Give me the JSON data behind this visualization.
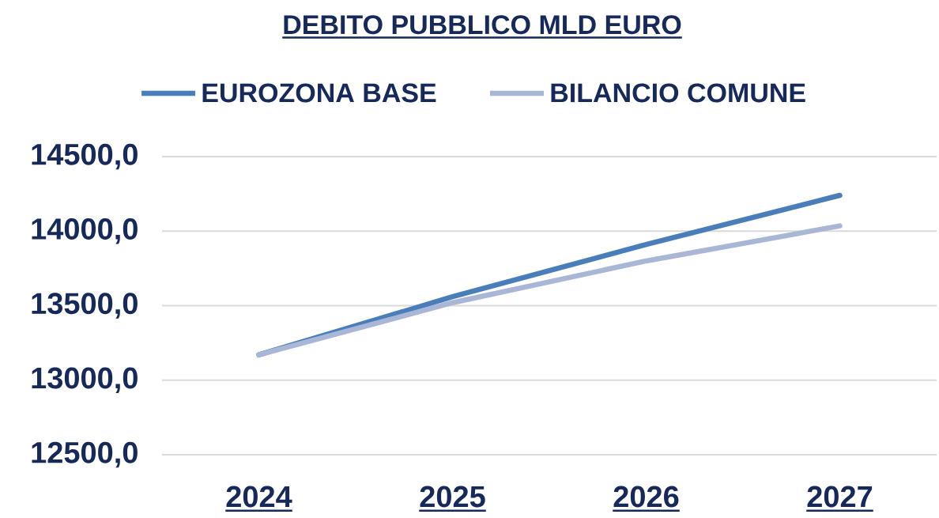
{
  "chart_data": {
    "type": "line",
    "title": "DEBITO PUBBLICO MLD EURO",
    "categories": [
      "2024",
      "2025",
      "2026",
      "2027"
    ],
    "series": [
      {
        "name": "EUROZONA BASE",
        "color": "#4a7ebb",
        "values": [
          13170,
          13560,
          13910,
          14240
        ]
      },
      {
        "name": "BILANCIO COMUNE",
        "color": "#a9b6d6",
        "values": [
          13170,
          13520,
          13800,
          14035
        ]
      }
    ],
    "ylim": [
      12500,
      14500
    ],
    "yticks": [
      {
        "value": 12500,
        "label": "12500,0"
      },
      {
        "value": 13000,
        "label": "13000,0"
      },
      {
        "value": 13500,
        "label": "13500,0"
      },
      {
        "value": 14000,
        "label": "14000,0"
      },
      {
        "value": 14500,
        "label": "14500,0"
      }
    ],
    "grid": "y",
    "legend": "top",
    "marker": "none",
    "line_style": "solid"
  }
}
